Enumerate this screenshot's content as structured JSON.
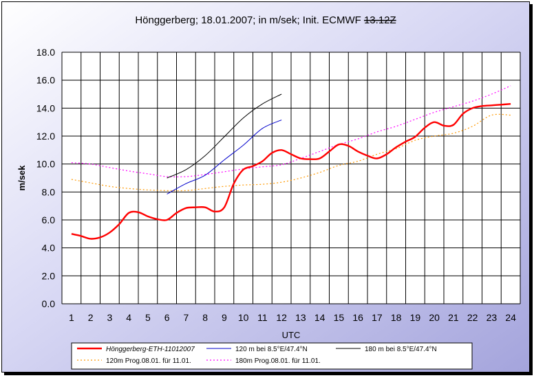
{
  "chart_data": {
    "type": "line",
    "title_main": "Hönggerberg; 18.01.2007; in m/sek; Init. ECMWF ",
    "title_struck": "13.12Z",
    "xlabel": "UTC",
    "ylabel": "m/sek",
    "xlim": [
      0.5,
      24.5
    ],
    "ylim": [
      0,
      18
    ],
    "x_ticks": [
      "1",
      "2",
      "3",
      "4",
      "5",
      "6",
      "7",
      "8",
      "9",
      "10",
      "11",
      "12",
      "13",
      "14",
      "15",
      "16",
      "17",
      "18",
      "19",
      "20",
      "21",
      "22",
      "23",
      "24"
    ],
    "y_ticks": [
      "0.0",
      "2.0",
      "4.0",
      "6.0",
      "8.0",
      "10.0",
      "12.0",
      "14.0",
      "16.0",
      "18.0"
    ],
    "grid": true,
    "legend_position": "bottom",
    "series": [
      {
        "name": "Hönggerberg-ETH-11012007",
        "color": "#ff0000",
        "style": "solid-thick",
        "points": [
          [
            1,
            5.0
          ],
          [
            1.5,
            4.85
          ],
          [
            2,
            4.65
          ],
          [
            2.5,
            4.75
          ],
          [
            3,
            5.1
          ],
          [
            3.5,
            5.7
          ],
          [
            4,
            6.5
          ],
          [
            4.5,
            6.55
          ],
          [
            5,
            6.25
          ],
          [
            5.5,
            6.05
          ],
          [
            6,
            6.0
          ],
          [
            6.5,
            6.5
          ],
          [
            7,
            6.85
          ],
          [
            7.5,
            6.9
          ],
          [
            8,
            6.9
          ],
          [
            8.5,
            6.6
          ],
          [
            9,
            6.9
          ],
          [
            9.5,
            8.6
          ],
          [
            10,
            9.6
          ],
          [
            10.5,
            9.85
          ],
          [
            11,
            10.2
          ],
          [
            11.5,
            10.8
          ],
          [
            12,
            11.0
          ],
          [
            12.5,
            10.7
          ],
          [
            13,
            10.4
          ],
          [
            13.5,
            10.35
          ],
          [
            14,
            10.4
          ],
          [
            14.5,
            10.9
          ],
          [
            15,
            11.4
          ],
          [
            15.5,
            11.3
          ],
          [
            16,
            10.9
          ],
          [
            16.5,
            10.6
          ],
          [
            17,
            10.4
          ],
          [
            17.5,
            10.7
          ],
          [
            18,
            11.2
          ],
          [
            18.5,
            11.6
          ],
          [
            19,
            11.95
          ],
          [
            19.5,
            12.6
          ],
          [
            20,
            13.0
          ],
          [
            20.5,
            12.75
          ],
          [
            21,
            12.8
          ],
          [
            21.5,
            13.6
          ],
          [
            22,
            14.0
          ],
          [
            22.5,
            14.15
          ],
          [
            23,
            14.2
          ],
          [
            23.5,
            14.25
          ],
          [
            24,
            14.3
          ]
        ]
      },
      {
        "name": "120 m bei 8.5°E/47.4°N",
        "color": "#0000cc",
        "style": "solid-thin",
        "points": [
          [
            6,
            7.85
          ],
          [
            7,
            8.6
          ],
          [
            8,
            9.2
          ],
          [
            9,
            10.3
          ],
          [
            10,
            11.35
          ],
          [
            11,
            12.55
          ],
          [
            12,
            13.15
          ]
        ]
      },
      {
        "name": "180 m bei 8.5°E/47.4°N",
        "color": "#000000",
        "style": "solid-thin",
        "points": [
          [
            6,
            9.0
          ],
          [
            7,
            9.6
          ],
          [
            8,
            10.6
          ],
          [
            9,
            11.95
          ],
          [
            10,
            13.3
          ],
          [
            11,
            14.3
          ],
          [
            12,
            15.0
          ]
        ]
      },
      {
        "name": "120m Prog.08.01. für 11.01.",
        "color": "#ff9900",
        "style": "dotted",
        "points": [
          [
            1,
            8.9
          ],
          [
            2,
            8.65
          ],
          [
            3,
            8.4
          ],
          [
            4,
            8.25
          ],
          [
            5,
            8.15
          ],
          [
            6,
            8.1
          ],
          [
            7,
            8.1
          ],
          [
            8,
            8.25
          ],
          [
            9,
            8.4
          ],
          [
            10,
            8.5
          ],
          [
            11,
            8.55
          ],
          [
            12,
            8.7
          ],
          [
            13,
            9.0
          ],
          [
            14,
            9.4
          ],
          [
            15,
            9.9
          ],
          [
            16,
            10.2
          ],
          [
            17,
            10.7
          ],
          [
            18,
            11.1
          ],
          [
            19,
            11.7
          ],
          [
            20,
            12.0
          ],
          [
            21,
            12.2
          ],
          [
            22,
            12.7
          ],
          [
            23,
            13.5
          ],
          [
            24,
            13.5
          ]
        ]
      },
      {
        "name": "180m Prog.08.01. für 11.01.",
        "color": "#ff00ff",
        "style": "dotted",
        "points": [
          [
            1,
            10.1
          ],
          [
            2,
            10.0
          ],
          [
            3,
            9.75
          ],
          [
            4,
            9.5
          ],
          [
            5,
            9.3
          ],
          [
            6,
            9.1
          ],
          [
            7,
            9.1
          ],
          [
            8,
            9.25
          ],
          [
            9,
            9.45
          ],
          [
            10,
            9.65
          ],
          [
            11,
            9.8
          ],
          [
            12,
            9.95
          ],
          [
            13,
            10.4
          ],
          [
            14,
            10.9
          ],
          [
            15,
            11.4
          ],
          [
            16,
            11.8
          ],
          [
            17,
            12.3
          ],
          [
            18,
            12.7
          ],
          [
            19,
            13.2
          ],
          [
            20,
            13.7
          ],
          [
            21,
            14.1
          ],
          [
            22,
            14.5
          ],
          [
            23,
            15.0
          ],
          [
            24,
            15.6
          ]
        ]
      }
    ]
  }
}
